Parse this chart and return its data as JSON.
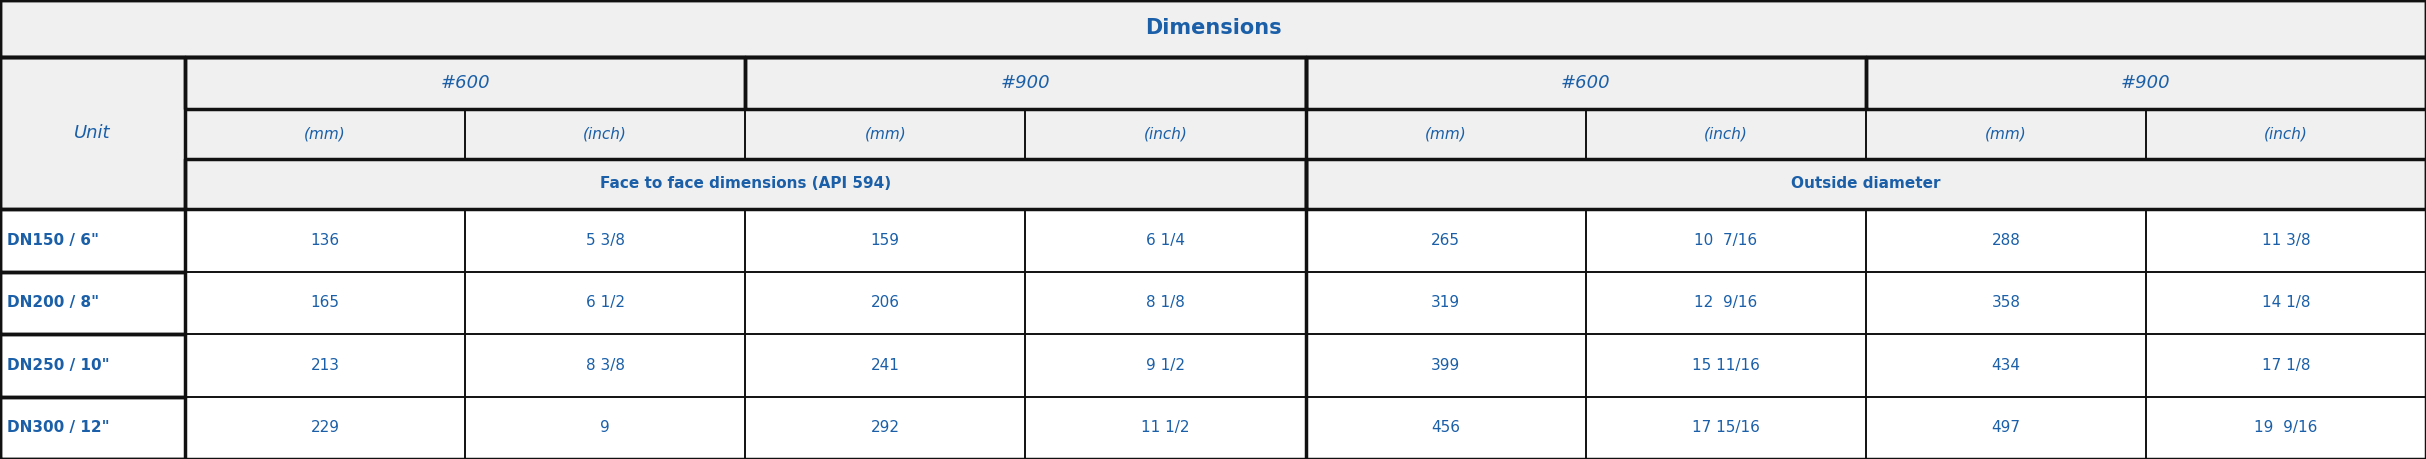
{
  "title": "Dimensions",
  "header_bg": "#f0f0f0",
  "data_bg": "#ffffff",
  "text_color": "#1a5fa8",
  "border_color": "#111111",
  "thin_border": "#444444",
  "col_groups": [
    "#600",
    "#900",
    "#600",
    "#900"
  ],
  "sub_headers": [
    "(mm)",
    "(inch)",
    "(mm)",
    "(inch)",
    "(mm)",
    "(inch)",
    "(mm)",
    "(inch)"
  ],
  "section_labels": [
    "Face to face dimensions (API 594)",
    "Outside diameter"
  ],
  "row_label": "Unit",
  "rows": [
    {
      "label": "DN150 / 6\"",
      "values": [
        "136",
        "5 3/8",
        "159",
        "6 1/4",
        "265",
        "10  7/16",
        "288",
        "11 3/8"
      ]
    },
    {
      "label": "DN200 / 8\"",
      "values": [
        "165",
        "6 1/2",
        "206",
        "8 1/8",
        "319",
        "12  9/16",
        "358",
        "14 1/8"
      ]
    },
    {
      "label": "DN250 / 10\"",
      "values": [
        "213",
        "8 3/8",
        "241",
        "9 1/2",
        "399",
        "15 11/16",
        "434",
        "17 1/8"
      ]
    },
    {
      "label": "DN300 / 12\"",
      "values": [
        "229",
        "9",
        "292",
        "11 1/2",
        "456",
        "17 15/16",
        "497",
        "19  9/16"
      ]
    }
  ],
  "figwidth": 24.26,
  "figheight": 4.59,
  "dpi": 100
}
